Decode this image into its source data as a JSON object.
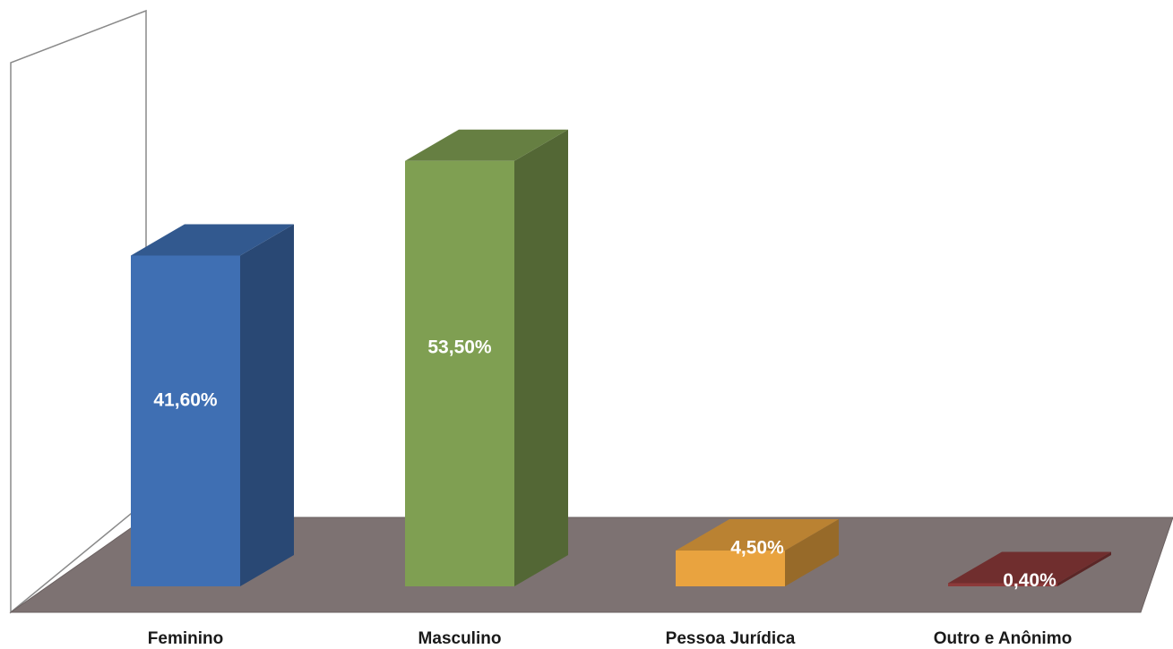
{
  "chart_data": {
    "type": "bar",
    "three_d": true,
    "title": "",
    "xlabel": "",
    "ylabel": "",
    "categories": [
      "Feminino",
      "Masculino",
      "Pessoa Jurídica",
      "Outro e Anônimo"
    ],
    "values": [
      41.6,
      53.5,
      4.5,
      0.4
    ],
    "data_labels": [
      "41,60%",
      "53,50%",
      "4,50%",
      "0,40%"
    ],
    "unit": "%",
    "ylim": [
      0,
      60
    ],
    "grid": false,
    "legend": "none",
    "colors": [
      "#3f6fb3",
      "#7f9f52",
      "#e9a33f",
      "#8c3a3a"
    ],
    "floor_color": "#7d7272",
    "wall_color": "#ffffff",
    "wall_edge_color": "#8a8a8a"
  }
}
